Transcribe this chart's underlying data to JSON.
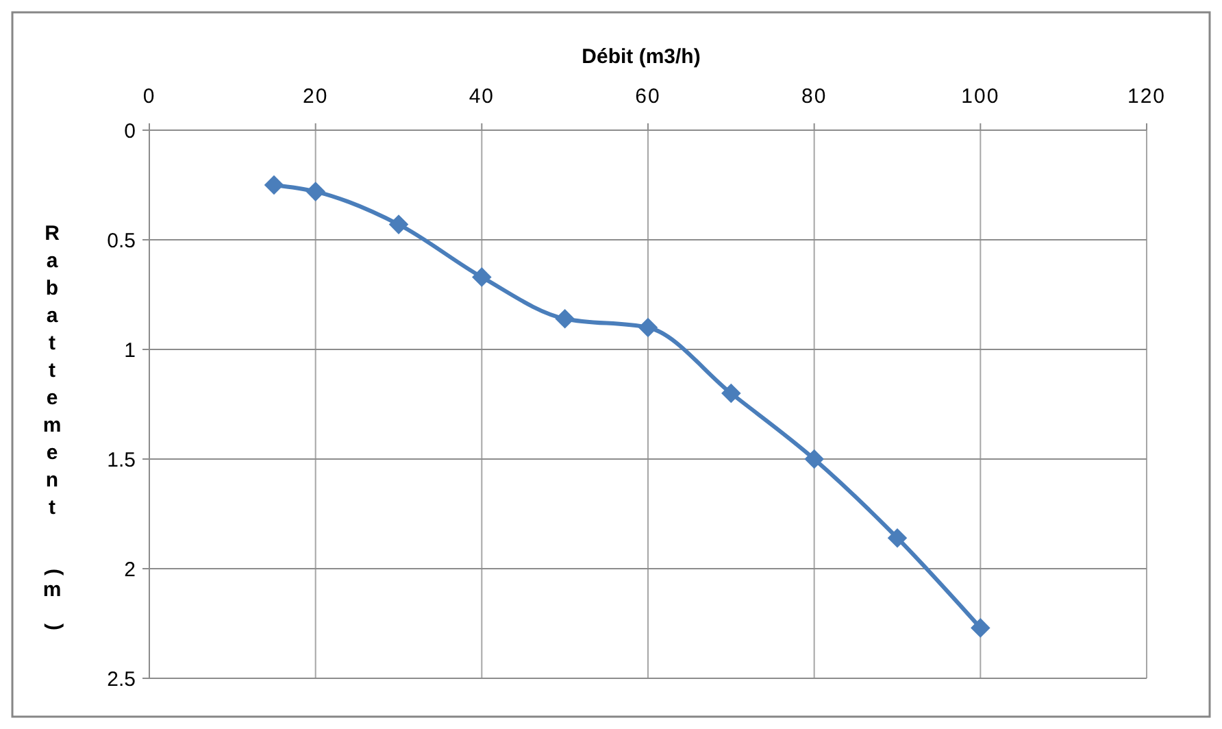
{
  "chart_data": {
    "type": "line",
    "xlabel": "Débit (m3/h)",
    "ylabel": "Rabattement (m)",
    "xlim": [
      0,
      120
    ],
    "xticks": [
      0,
      20,
      40,
      60,
      80,
      100,
      120
    ],
    "ylim": [
      2.5,
      0
    ],
    "yticks": [
      0,
      0.5,
      1,
      1.5,
      2,
      2.5
    ],
    "grid": true,
    "marker": "diamond",
    "series": [
      {
        "color": "#4a7ebb",
        "x": [
          15,
          20,
          30,
          40,
          50,
          60,
          70,
          80,
          90,
          100
        ],
        "values": [
          0.25,
          0.28,
          0.43,
          0.67,
          0.86,
          0.9,
          1.2,
          1.5,
          1.86,
          2.27
        ]
      }
    ]
  }
}
